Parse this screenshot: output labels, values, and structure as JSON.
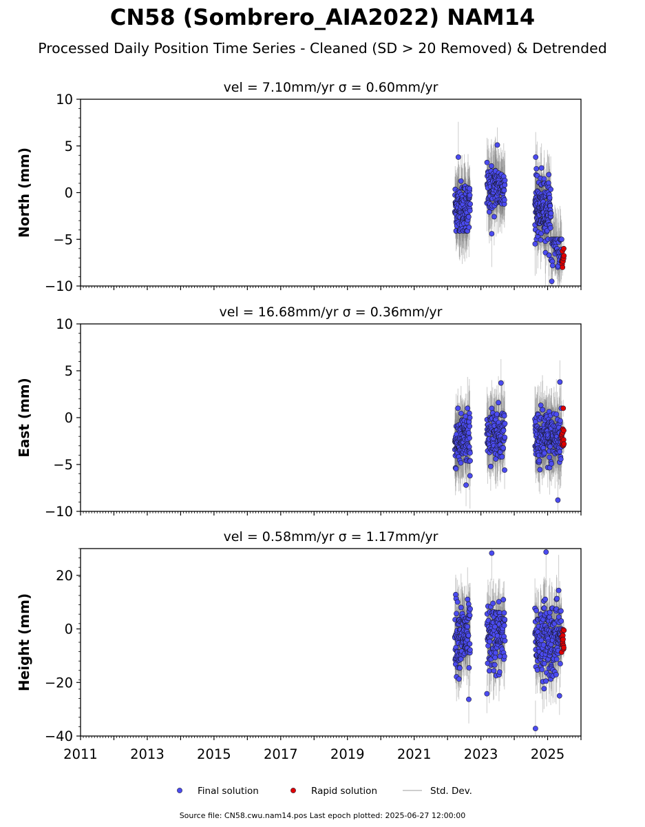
{
  "title": "CN58 (Sombrero_AIA2022) NAM14",
  "subtitle": "Processed Daily Position Time Series - Cleaned (SD > 20 Removed) & Detrended",
  "footer": "Source file: CN58.cwu.nam14.pos  Last epoch plotted: 2025-06-27 12:00:00",
  "colors": {
    "final": "#4b4bf0",
    "rapid": "#e00000",
    "stddev": "#bdbdbd",
    "edge": "#1a1a33"
  },
  "legend": {
    "final": "Final solution",
    "rapid": "Rapid solution",
    "stddev": "Std. Dev."
  },
  "chart_data": [
    {
      "type": "scatter",
      "title": "vel = 7.10mm/yr   σ = 0.60mm/yr",
      "ylabel": "North (mm)",
      "xlim": [
        2011,
        2026
      ],
      "ylim": [
        -10,
        10
      ],
      "yticks": [
        10,
        5,
        0,
        -5,
        -10
      ],
      "series": [
        {
          "name": "Final solution",
          "segments": [
            {
              "x0": 2022.22,
              "x1": 2022.68,
              "mean": -1.6,
              "spread": 1.4,
              "n": 130,
              "min": -4.1,
              "max": 3.8
            },
            {
              "x0": 2023.18,
              "x1": 2023.72,
              "mean": 0.4,
              "spread": 1.3,
              "n": 120,
              "min": -4.4,
              "max": 5.1
            },
            {
              "x0": 2024.62,
              "x1": 2025.1,
              "mean": -1.8,
              "spread": 1.6,
              "n": 170,
              "min": -6.7,
              "max": 3.8
            },
            {
              "x0": 2025.1,
              "x1": 2025.42,
              "mean": -6.0,
              "spread": 1.0,
              "n": 40,
              "min": -9.5,
              "max": -5.0
            }
          ]
        },
        {
          "name": "Rapid solution",
          "segments": [
            {
              "x0": 2025.42,
              "x1": 2025.49,
              "mean": -7.0,
              "spread": 0.6,
              "n": 14,
              "min": -8.0,
              "max": -6.0
            }
          ]
        }
      ]
    },
    {
      "type": "scatter",
      "title": "vel = 16.68mm/yr   σ = 0.36mm/yr",
      "ylabel": "East (mm)",
      "xlim": [
        2011,
        2026
      ],
      "ylim": [
        -10,
        10
      ],
      "yticks": [
        10,
        5,
        0,
        -5,
        -10
      ],
      "series": [
        {
          "name": "Final solution",
          "segments": [
            {
              "x0": 2022.22,
              "x1": 2022.68,
              "mean": -2.5,
              "spread": 1.4,
              "n": 130,
              "min": -7.2,
              "max": 1.0
            },
            {
              "x0": 2023.18,
              "x1": 2023.72,
              "mean": -1.5,
              "spread": 1.3,
              "n": 120,
              "min": -5.6,
              "max": 3.7
            },
            {
              "x0": 2024.62,
              "x1": 2025.42,
              "mean": -2.2,
              "spread": 1.5,
              "n": 200,
              "min": -8.8,
              "max": 3.8
            }
          ]
        },
        {
          "name": "Rapid solution",
          "segments": [
            {
              "x0": 2025.42,
              "x1": 2025.49,
              "mean": -2.0,
              "spread": 0.8,
              "n": 14,
              "min": -3.0,
              "max": 1.0
            }
          ]
        }
      ]
    },
    {
      "type": "scatter",
      "title": "vel = 0.58mm/yr   σ = 1.17mm/yr",
      "ylabel": "Height (mm)",
      "xlim": [
        2011,
        2026
      ],
      "ylim": [
        -40,
        30
      ],
      "yticks": [
        20,
        0,
        -20,
        -40
      ],
      "series": [
        {
          "name": "Final solution",
          "segments": [
            {
              "x0": 2022.22,
              "x1": 2022.68,
              "mean": -3.0,
              "spread": 6.0,
              "n": 130,
              "min": -26.3,
              "max": 12.8
            },
            {
              "x0": 2023.18,
              "x1": 2023.72,
              "mean": -3.0,
              "spread": 6.5,
              "n": 120,
              "min": -24.2,
              "max": 28.3
            },
            {
              "x0": 2024.62,
              "x1": 2025.42,
              "mean": -4.0,
              "spread": 7.0,
              "n": 200,
              "min": -37.2,
              "max": 28.7
            }
          ]
        },
        {
          "name": "Rapid solution",
          "segments": [
            {
              "x0": 2025.42,
              "x1": 2025.49,
              "mean": -4.0,
              "spread": 2.5,
              "n": 14,
              "min": -8.7,
              "max": -0.3
            }
          ]
        }
      ]
    }
  ],
  "xticks": [
    2011,
    2013,
    2015,
    2017,
    2019,
    2021,
    2023,
    2025
  ]
}
